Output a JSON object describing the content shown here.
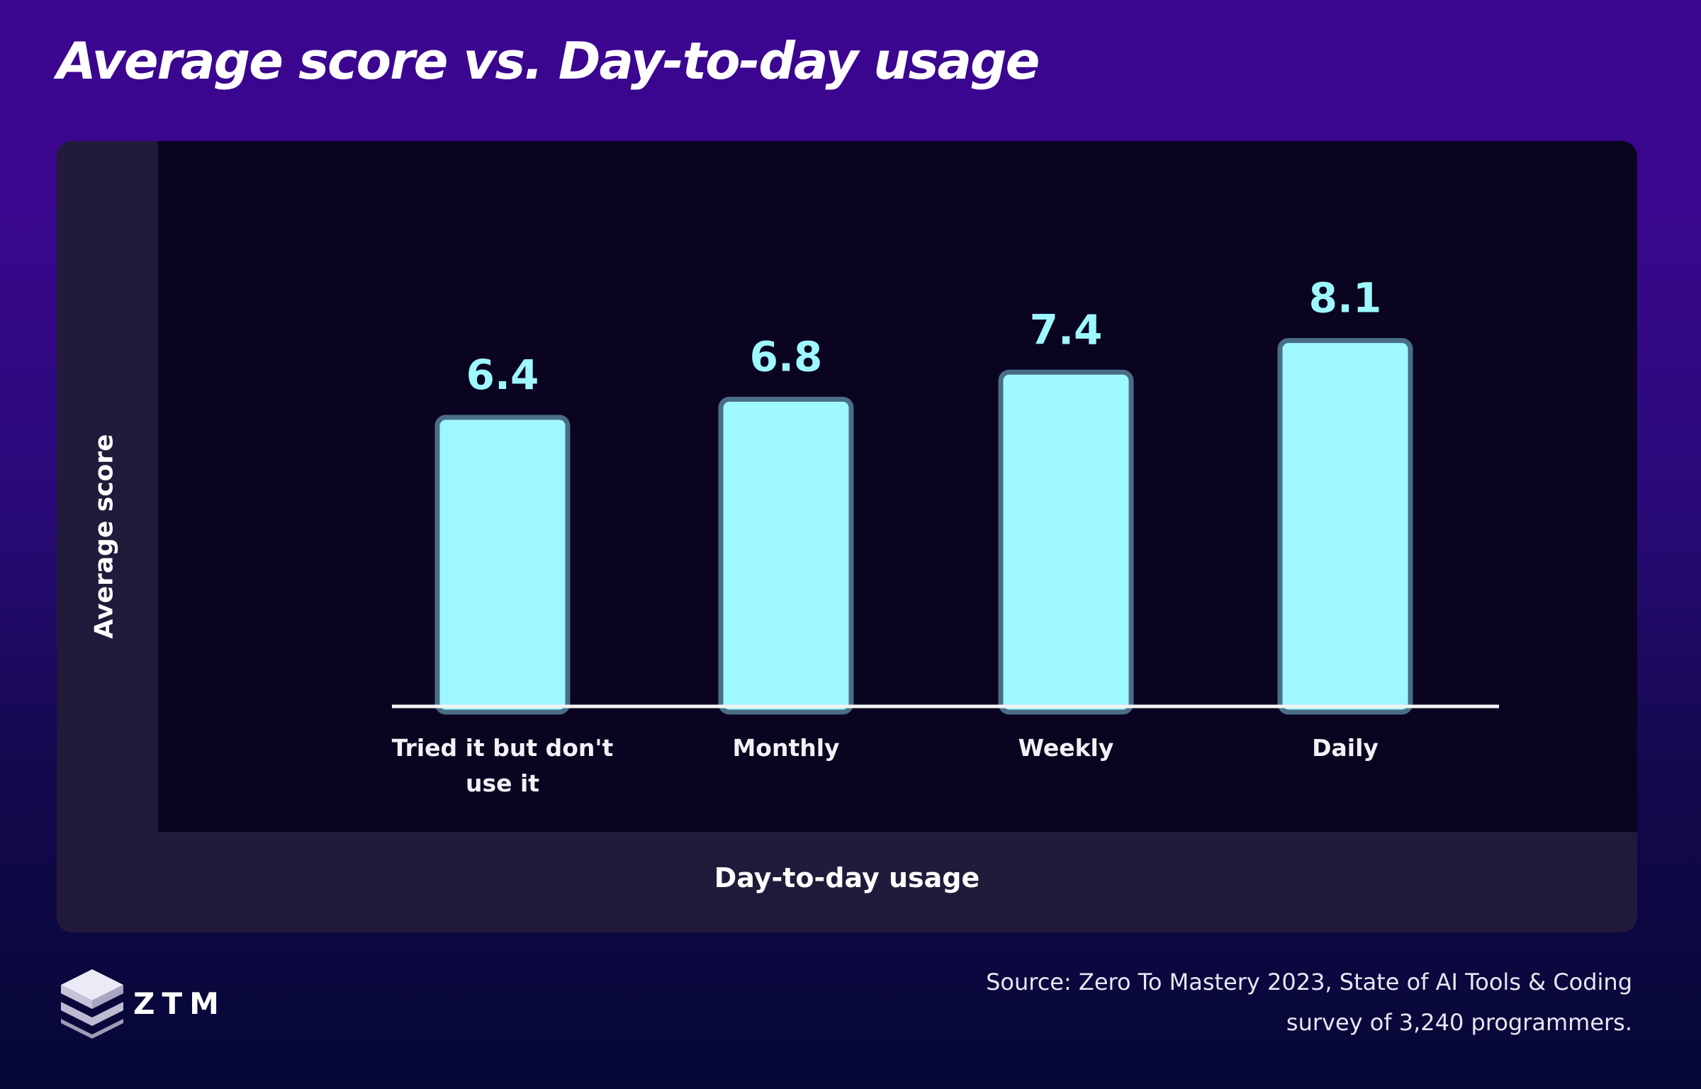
{
  "title": "Average score vs. Day-to-day usage",
  "chart_data": {
    "type": "bar",
    "categories": [
      "Tried it but don't use it",
      "Monthly",
      "Weekly",
      "Daily"
    ],
    "category_label_lines": [
      [
        "Tried it but don't",
        "use it"
      ],
      [
        "Monthly"
      ],
      [
        "Weekly"
      ],
      [
        "Daily"
      ]
    ],
    "values": [
      6.4,
      6.8,
      7.4,
      8.1
    ],
    "value_labels": [
      "6.4",
      "6.8",
      "7.4",
      "8.1"
    ],
    "xlabel": "Day-to-day usage",
    "ylabel": "Average score",
    "bar_color": "#9ef8ff",
    "grid": false
  },
  "source": {
    "line1": "Source: Zero To Mastery 2023, State of AI Tools & Coding",
    "line2": "survey of 3,240 programmers."
  },
  "logo": {
    "text": "ZTM",
    "icon": "ztm-cube-logo-icon"
  }
}
